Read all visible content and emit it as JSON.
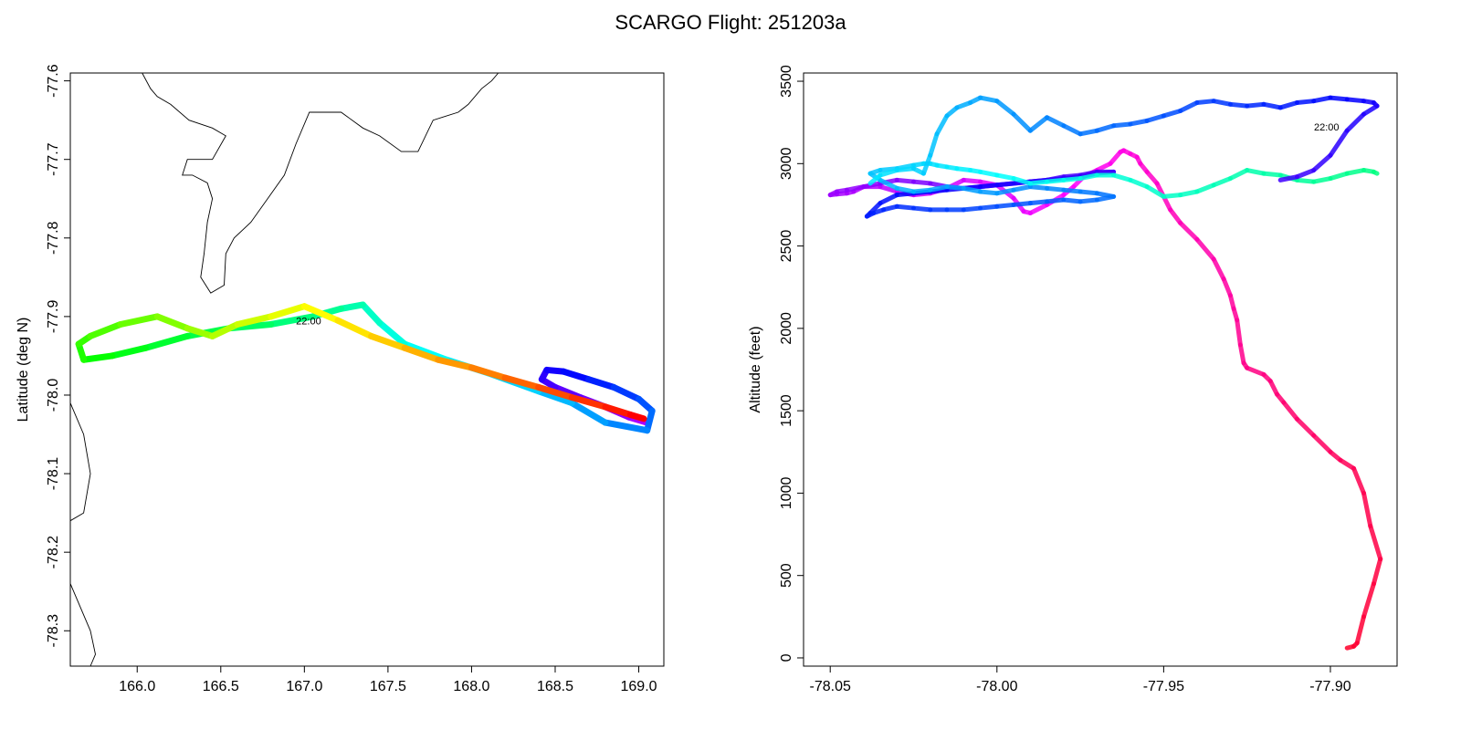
{
  "figure_title": "SCARGO Flight: 251203a",
  "chart_data": [
    {
      "type": "line",
      "panel": "map",
      "title": "",
      "xlabel": "",
      "ylabel": "Latitude (deg N)",
      "xlim": [
        165.6,
        169.15
      ],
      "ylim": [
        -78.345,
        -77.59
      ],
      "xticks": [
        166.0,
        166.5,
        167.0,
        167.5,
        168.0,
        168.5,
        169.0
      ],
      "xtick_labels": [
        "166.0",
        "166.5",
        "167.0",
        "167.5",
        "168.0",
        "168.5",
        "169.0"
      ],
      "yticks": [
        -77.6,
        -77.7,
        -77.8,
        -77.9,
        -78.0,
        -78.1,
        -78.2,
        -78.3
      ],
      "ytick_labels": [
        "-77.6",
        "-77.7",
        "-77.8",
        "-77.9",
        "-78.0",
        "-78.1",
        "-78.2",
        "-78.3"
      ],
      "annotation": {
        "text": "22:00",
        "x": 166.95,
        "y": -77.91
      },
      "coastline": [
        [
          [
            166.03,
            -77.59
          ],
          [
            166.08,
            -77.61
          ],
          [
            166.12,
            -77.62
          ],
          [
            166.2,
            -77.63
          ],
          [
            166.31,
            -77.65
          ],
          [
            166.45,
            -77.66
          ],
          [
            166.53,
            -77.67
          ],
          [
            166.45,
            -77.7
          ],
          [
            166.3,
            -77.7
          ],
          [
            166.27,
            -77.72
          ],
          [
            166.33,
            -77.72
          ],
          [
            166.42,
            -77.73
          ],
          [
            166.45,
            -77.75
          ],
          [
            166.42,
            -77.78
          ],
          [
            166.4,
            -77.82
          ],
          [
            166.38,
            -77.85
          ],
          [
            166.44,
            -77.87
          ],
          [
            166.52,
            -77.86
          ],
          [
            166.53,
            -77.82
          ],
          [
            166.58,
            -77.8
          ],
          [
            166.68,
            -77.78
          ],
          [
            166.78,
            -77.75
          ],
          [
            166.88,
            -77.72
          ],
          [
            166.95,
            -77.68
          ],
          [
            167.03,
            -77.64
          ],
          [
            167.22,
            -77.64
          ],
          [
            167.35,
            -77.66
          ],
          [
            167.45,
            -77.67
          ],
          [
            167.58,
            -77.69
          ],
          [
            167.68,
            -77.69
          ],
          [
            167.77,
            -77.65
          ],
          [
            167.92,
            -77.64
          ],
          [
            167.98,
            -77.63
          ],
          [
            168.06,
            -77.61
          ],
          [
            168.12,
            -77.6
          ],
          [
            168.16,
            -77.59
          ]
        ],
        [
          [
            165.6,
            -78.01
          ],
          [
            165.68,
            -78.05
          ],
          [
            165.72,
            -78.1
          ],
          [
            165.68,
            -78.15
          ],
          [
            165.6,
            -78.16
          ]
        ],
        [
          [
            165.6,
            -78.24
          ],
          [
            165.72,
            -78.3
          ],
          [
            165.75,
            -78.33
          ],
          [
            165.72,
            -78.345
          ]
        ]
      ],
      "track": {
        "lon": [
          169.05,
          168.94,
          168.8,
          168.65,
          168.5,
          168.42,
          168.45,
          168.55,
          168.7,
          168.85,
          169.0,
          169.08,
          169.05,
          168.8,
          168.6,
          168.4,
          168.1,
          167.85,
          167.6,
          167.45,
          167.35,
          167.22,
          167.05,
          166.8,
          166.55,
          166.3,
          166.05,
          165.85,
          165.68,
          165.65,
          165.72,
          165.9,
          166.12,
          166.3,
          166.45,
          166.6,
          166.8,
          167.0,
          167.2,
          167.4,
          167.6,
          167.8,
          168.0,
          168.2,
          168.4,
          168.6,
          168.8,
          168.95,
          169.03
        ],
        "lat": [
          -78.035,
          -78.028,
          -78.015,
          -78.003,
          -77.99,
          -77.98,
          -77.968,
          -77.97,
          -77.98,
          -77.99,
          -78.005,
          -78.02,
          -78.045,
          -78.035,
          -78.01,
          -77.995,
          -77.972,
          -77.955,
          -77.935,
          -77.908,
          -77.885,
          -77.89,
          -77.9,
          -77.91,
          -77.915,
          -77.925,
          -77.94,
          -77.95,
          -77.955,
          -77.935,
          -77.925,
          -77.91,
          -77.9,
          -77.915,
          -77.925,
          -77.91,
          -77.9,
          -77.887,
          -77.905,
          -77.925,
          -77.94,
          -77.955,
          -77.965,
          -77.978,
          -77.99,
          -78.003,
          -78.015,
          -78.025,
          -78.03
        ]
      }
    },
    {
      "type": "scatter",
      "panel": "altitude",
      "title": "",
      "xlabel": "",
      "ylabel": "Altitude (feet)",
      "xlim": [
        -78.058,
        -77.88
      ],
      "ylim": [
        -50,
        3550
      ],
      "xticks": [
        -78.05,
        -78.0,
        -77.95,
        -77.9
      ],
      "xtick_labels": [
        "-78.05",
        "-78.00",
        "-77.95",
        "-77.90"
      ],
      "yticks": [
        0,
        500,
        1000,
        1500,
        2000,
        2500,
        3000,
        3500
      ],
      "ytick_labels": [
        "0",
        "500",
        "1000",
        "1500",
        "2000",
        "2500",
        "3000",
        "3500"
      ],
      "annotation": {
        "text": "22:00",
        "x": -77.9,
        "y": 3200
      },
      "track": {
        "lat": [
          -77.895,
          -77.893,
          -77.892,
          -77.89,
          -77.887,
          -77.885,
          -77.888,
          -77.89,
          -77.893,
          -77.897,
          -77.9,
          -77.905,
          -77.91,
          -77.914,
          -77.916,
          -77.918,
          -77.92,
          -77.925,
          -77.926,
          -77.927,
          -77.928,
          -77.929,
          -77.93,
          -77.932,
          -77.935,
          -77.94,
          -77.945,
          -77.948,
          -77.95,
          -77.952,
          -77.955,
          -77.957,
          -77.958,
          -77.96,
          -77.962,
          -77.963,
          -77.966,
          -77.97,
          -77.974,
          -77.977,
          -77.98,
          -77.985,
          -77.99,
          -77.992,
          -77.995,
          -78.0,
          -78.005,
          -78.01,
          -78.015,
          -78.02,
          -78.025,
          -78.03,
          -78.035,
          -78.04,
          -78.043,
          -78.045,
          -78.048,
          -78.05,
          -78.048,
          -78.045,
          -78.04,
          -78.035,
          -78.03,
          -78.025,
          -78.02,
          -78.015,
          -78.01,
          -78.005,
          -78.0,
          -77.995,
          -77.99,
          -77.985,
          -77.98,
          -77.975,
          -77.97,
          -77.965,
          -77.97,
          -77.975,
          -77.98,
          -77.985,
          -77.99,
          -77.995,
          -78.0,
          -78.005,
          -78.01,
          -78.015,
          -78.02,
          -78.025,
          -78.03,
          -78.035,
          -78.038,
          -78.039,
          -78.037,
          -78.034,
          -78.03,
          -78.025,
          -78.02,
          -78.015,
          -78.01,
          -78.005,
          -78.0,
          -77.995,
          -77.99,
          -77.985,
          -77.98,
          -77.975,
          -77.97,
          -77.965,
          -77.97,
          -77.975,
          -77.98,
          -77.985,
          -77.99,
          -77.995,
          -78.0,
          -78.005,
          -78.01,
          -78.015,
          -78.02,
          -78.025,
          -78.03,
          -78.035,
          -78.038,
          -78.035,
          -78.03,
          -78.025,
          -78.022,
          -78.02,
          -78.018,
          -78.015,
          -78.012,
          -78.008,
          -78.005,
          -78.0,
          -77.995,
          -77.99,
          -77.985,
          -77.98,
          -77.975,
          -77.97,
          -77.965,
          -77.96,
          -77.955,
          -77.95,
          -77.945,
          -77.94,
          -77.935,
          -77.93,
          -77.925,
          -77.92,
          -77.915,
          -77.91,
          -77.905,
          -77.9,
          -77.895,
          -77.89,
          -77.887,
          -77.886
        ],
        "alt": [
          60,
          70,
          90,
          250,
          450,
          600,
          800,
          1000,
          1150,
          1200,
          1250,
          1350,
          1450,
          1550,
          1600,
          1680,
          1720,
          1760,
          1790,
          1900,
          2050,
          2120,
          2200,
          2300,
          2420,
          2540,
          2640,
          2720,
          2800,
          2880,
          2950,
          3000,
          3040,
          3060,
          3080,
          3070,
          3000,
          2960,
          2920,
          2860,
          2810,
          2750,
          2700,
          2710,
          2790,
          2870,
          2890,
          2900,
          2850,
          2820,
          2810,
          2830,
          2860,
          2860,
          2830,
          2820,
          2815,
          2810,
          2830,
          2840,
          2860,
          2880,
          2900,
          2890,
          2880,
          2860,
          2850,
          2860,
          2870,
          2880,
          2890,
          2900,
          2920,
          2930,
          2950,
          2950,
          2940,
          2920,
          2910,
          2900,
          2890,
          2880,
          2870,
          2860,
          2850,
          2840,
          2830,
          2820,
          2810,
          2760,
          2700,
          2680,
          2700,
          2720,
          2740,
          2730,
          2720,
          2720,
          2720,
          2730,
          2740,
          2750,
          2760,
          2770,
          2780,
          2770,
          2780,
          2800,
          2820,
          2830,
          2840,
          2850,
          2860,
          2840,
          2820,
          2830,
          2850,
          2860,
          2840,
          2830,
          2850,
          2900,
          2940,
          2960,
          2970,
          2990,
          3000,
          3000,
          2990,
          2980,
          2970,
          2960,
          2950,
          2930,
          2910,
          2880,
          2890,
          2900,
          2910,
          2930,
          2930,
          2900,
          2860,
          2800,
          2810,
          2830,
          2870,
          2910,
          2960,
          2940,
          2930,
          2900,
          2890,
          2910,
          2940,
          2960,
          2950,
          2940
        ]
      },
      "track_upper": {
        "lat": [
          -78.038,
          -78.035,
          -78.03,
          -78.025,
          -78.022,
          -78.02,
          -78.018,
          -78.015,
          -78.012,
          -78.008,
          -78.005,
          -78.0,
          -77.995,
          -77.99,
          -77.985,
          -77.98,
          -77.975,
          -77.97,
          -77.965,
          -77.96,
          -77.955,
          -77.95,
          -77.945,
          -77.94,
          -77.935,
          -77.93,
          -77.925,
          -77.92,
          -77.915,
          -77.91,
          -77.905,
          -77.9,
          -77.895,
          -77.89,
          -77.887,
          -77.886,
          -77.89,
          -77.895,
          -77.9,
          -77.905,
          -77.91,
          -77.915
        ],
        "alt": [
          2880,
          2930,
          2960,
          2970,
          2940,
          3050,
          3180,
          3290,
          3340,
          3370,
          3400,
          3380,
          3300,
          3200,
          3280,
          3230,
          3180,
          3200,
          3230,
          3240,
          3260,
          3290,
          3320,
          3370,
          3380,
          3360,
          3350,
          3360,
          3340,
          3370,
          3380,
          3400,
          3390,
          3380,
          3370,
          3350,
          3300,
          3200,
          3050,
          2960,
          2920,
          2900
        ]
      }
    }
  ]
}
